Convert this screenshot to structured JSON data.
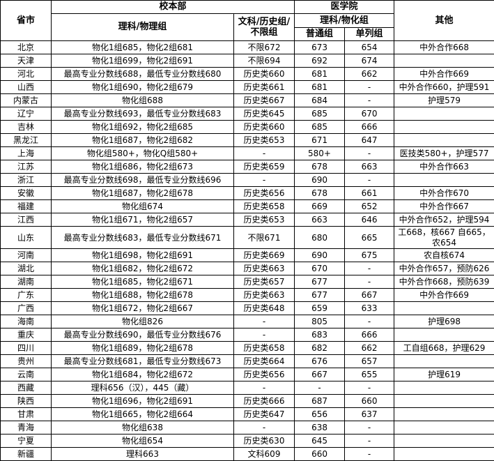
{
  "header": {
    "province": "省市",
    "main_campus": "校本部",
    "science": "理科/物理组",
    "arts": "文科/历史组/不限组",
    "medical": "医学院",
    "medical_science": "理科/物化组",
    "regular": "普通组",
    "separate": "单列组",
    "other": "其他"
  },
  "rows": [
    {
      "p": "北京",
      "s": "物化1组685，物化2组681",
      "a": "不限672",
      "r": "673",
      "d": "654",
      "o": "中外合作668"
    },
    {
      "p": "天津",
      "s": "物化1组699，物化2组691",
      "a": "不限694",
      "r": "692",
      "d": "674",
      "o": ""
    },
    {
      "p": "河北",
      "s": "最高专业分数线688，最低专业分数线680",
      "a": "历史类660",
      "r": "681",
      "d": "662",
      "o": "中外合作669"
    },
    {
      "p": "山西",
      "s": "物化1组690，物化2组679",
      "a": "历史类661",
      "r": "681",
      "d": "-",
      "o": "中外合作660，护理591"
    },
    {
      "p": "内蒙古",
      "s": "物化组688",
      "a": "历史类667",
      "r": "684",
      "d": "-",
      "o": "护理579"
    },
    {
      "p": "辽宁",
      "s": "最高专业分数线693，最低专业分数线683",
      "a": "历史类645",
      "r": "685",
      "d": "670",
      "o": ""
    },
    {
      "p": "吉林",
      "s": "物化1组692，物化2组685",
      "a": "历史类660",
      "r": "685",
      "d": "666",
      "o": ""
    },
    {
      "p": "黑龙江",
      "s": "物化1组687，物化2组682",
      "a": "历史类653",
      "r": "671",
      "d": "647",
      "o": ""
    },
    {
      "p": "上海",
      "s": "物化组580+，物化Q组580+",
      "a": "-",
      "r": "580+",
      "d": "-",
      "o": "医技类580+，护理577"
    },
    {
      "p": "江苏",
      "s": "物化1组686，物化2组673",
      "a": "历史类659",
      "r": "678",
      "d": "663",
      "o": "中外合作663"
    },
    {
      "p": "浙江",
      "s": "最高专业分数线698，最低专业分数线696",
      "a": "-",
      "r": "690",
      "d": "-",
      "o": ""
    },
    {
      "p": "安徽",
      "s": "物化1组687，物化2组678",
      "a": "历史类656",
      "r": "678",
      "d": "661",
      "o": "中外合作670"
    },
    {
      "p": "福建",
      "s": "物化组674",
      "a": "历史类658",
      "r": "669",
      "d": "652",
      "o": "中外合作667"
    },
    {
      "p": "江西",
      "s": "物化1组671，物化2组657",
      "a": "历史类653",
      "r": "663",
      "d": "646",
      "o": "中外合作652，护理594"
    },
    {
      "p": "山东",
      "s": "最高专业分数线683，最低专业分数线671",
      "a": "不限671",
      "r": "680",
      "d": "665",
      "o": "工668，核667 自665，农654"
    },
    {
      "p": "河南",
      "s": "物化1组698，物化2组691",
      "a": "历史类669",
      "r": "690",
      "d": "675",
      "o": "农自核674"
    },
    {
      "p": "湖北",
      "s": "物化1组682，物化2组672",
      "a": "历史类663",
      "r": "670",
      "d": "-",
      "o": "中外合作657，预防626"
    },
    {
      "p": "湖南",
      "s": "物化1组685，物化2组671",
      "a": "历史类657",
      "r": "677",
      "d": "-",
      "o": "中外合作668，预防639"
    },
    {
      "p": "广东",
      "s": "物化1组688，物化2组678",
      "a": "历史类663",
      "r": "677",
      "d": "667",
      "o": "中外合作669"
    },
    {
      "p": "广西",
      "s": "物化1组672，物化2组667",
      "a": "历史类648",
      "r": "659",
      "d": "633",
      "o": ""
    },
    {
      "p": "海南",
      "s": "物化组826",
      "a": "-",
      "r": "805",
      "d": "-",
      "o": "护理698"
    },
    {
      "p": "重庆",
      "s": "最高专业分数线690，最低专业分数线676",
      "a": "-",
      "r": "683",
      "d": "666",
      "o": ""
    },
    {
      "p": "四川",
      "s": "物化1组689，物化2组678",
      "a": "历史类658",
      "r": "682",
      "d": "662",
      "o": "工自组668，护理629"
    },
    {
      "p": "贵州",
      "s": "最高专业分数线681，最低专业分数线673",
      "a": "历史类664",
      "r": "676",
      "d": "657",
      "o": ""
    },
    {
      "p": "云南",
      "s": "物化1组684，物化2组672",
      "a": "历史类656",
      "r": "667",
      "d": "655",
      "o": "护理619"
    },
    {
      "p": "西藏",
      "s": "理科656（汉），445（藏）",
      "a": "-",
      "r": "-",
      "d": "-",
      "o": ""
    },
    {
      "p": "陕西",
      "s": "物化1组696，物化2组691",
      "a": "历史类666",
      "r": "687",
      "d": "660",
      "o": ""
    },
    {
      "p": "甘肃",
      "s": "物化1组665，物化2组664",
      "a": "历史类647",
      "r": "656",
      "d": "637",
      "o": ""
    },
    {
      "p": "青海",
      "s": "物化组638",
      "a": "-",
      "r": "638",
      "d": "-",
      "o": ""
    },
    {
      "p": "宁夏",
      "s": "物化组654",
      "a": "历史类630",
      "r": "645",
      "d": "-",
      "o": ""
    },
    {
      "p": "新疆",
      "s": "理科663",
      "a": "文科609",
      "r": "660",
      "d": "-",
      "o": ""
    }
  ]
}
